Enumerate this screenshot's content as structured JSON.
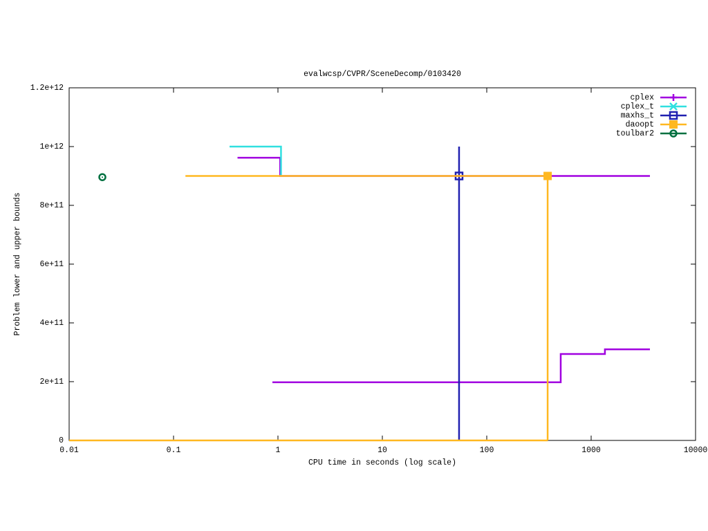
{
  "chart_data": {
    "type": "line",
    "title": "evalwcsp/CVPR/SceneDecomp/0103420",
    "x_label": "CPU time in seconds (log scale)",
    "y_label": "Problem lower and upper bounds",
    "xscale": "log",
    "xlim": [
      0.01,
      10000
    ],
    "ylim": [
      0,
      1200000000000
    ],
    "xticks": [
      0.01,
      0.1,
      1,
      10,
      100,
      1000,
      10000
    ],
    "yticks": [
      0,
      {
        "value": 200000000000,
        "label": "2e+11"
      },
      {
        "value": 400000000000,
        "label": "4e+11"
      },
      {
        "value": 600000000000,
        "label": "6e+11"
      },
      {
        "value": 800000000000,
        "label": "8e+11"
      },
      {
        "value": 1000000000000,
        "label": "1e+12"
      },
      {
        "value": 1200000000000,
        "label": "1.2e+12"
      }
    ],
    "legend": "top-right",
    "series": [
      {
        "name": "cplex",
        "color": "#a000e0",
        "marker": "plus",
        "x": [
          0.41,
          1.05,
          1.05,
          3656,
          null,
          0.885,
          511,
          511,
          1355,
          1355,
          3656
        ],
        "values": [
          962000000000,
          962000000000,
          900000000000,
          900000000000,
          null,
          198000000000,
          198000000000,
          294000000000,
          294000000000,
          310000000000,
          310000000000
        ]
      },
      {
        "name": "cplex_t",
        "color": "#30e0e0",
        "marker": "cross",
        "x": [
          0.344,
          1.07,
          1.07
        ],
        "values": [
          1000000000000,
          1000000000000,
          900000000000
        ]
      },
      {
        "name": "maxhs_t",
        "color": "#2020b0",
        "marker": "square",
        "x": [
          54.3,
          54.3
        ],
        "values": [
          0,
          1000000000000
        ],
        "markers": {
          "x": [
            54.3
          ],
          "values": [
            900000000000
          ]
        }
      },
      {
        "name": "daoopt",
        "color": "#ffb820",
        "marker": "filled-square",
        "x": [
          0.13,
          383,
          383,
          null,
          0.01,
          383
        ],
        "values": [
          900000000000,
          900000000000,
          0,
          null,
          0,
          0
        ],
        "markers": {
          "x": [
            383
          ],
          "values": [
            900000000000
          ]
        }
      },
      {
        "name": "toulbar2",
        "color": "#007040",
        "marker": "circle",
        "x": [],
        "values": [],
        "markers": {
          "x": [
            0.0208
          ],
          "values": [
            896000000000
          ]
        }
      }
    ]
  }
}
